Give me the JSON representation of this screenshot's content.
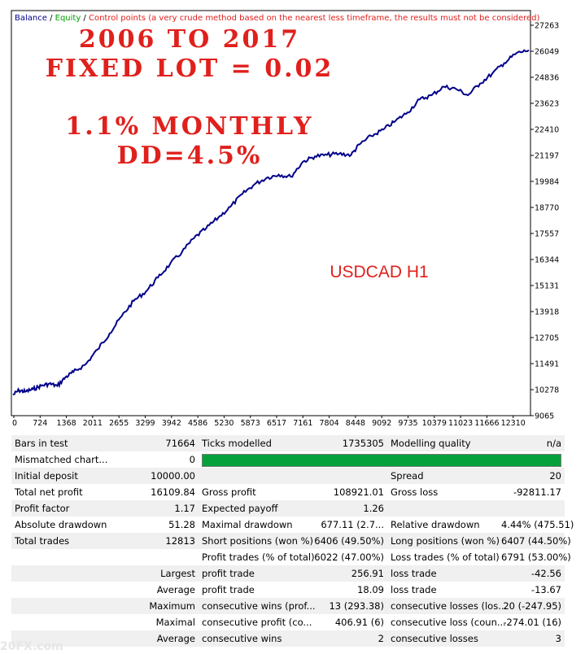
{
  "chart_data": {
    "type": "line",
    "legend": {
      "balance": "Balance",
      "sep1": " / ",
      "equity": "Equity",
      "sep2": " / ",
      "note": "Control points (a very crude method based on the nearest less timeframe, the results must not be considered)"
    },
    "x_ticks": [
      "0",
      "724",
      "1368",
      "2011",
      "2655",
      "3299",
      "3942",
      "4586",
      "5230",
      "5873",
      "6517",
      "7161",
      "7804",
      "8448",
      "9092",
      "9735",
      "10379",
      "11023",
      "11666",
      "12310"
    ],
    "y_ticks": [
      "27263",
      "26049",
      "24836",
      "23623",
      "22410",
      "21197",
      "19984",
      "18770",
      "17557",
      "16344",
      "15131",
      "13918",
      "12705",
      "11491",
      "10278",
      "9065"
    ],
    "ylim": [
      9065,
      27263
    ],
    "xlim": [
      0,
      12813
    ],
    "series": [
      {
        "color": "#00008b",
        "x": [
          0,
          150,
          300,
          500,
          700,
          900,
          1100,
          1300,
          1500,
          1800,
          2100,
          2400,
          2700,
          3000,
          3300,
          3600,
          3900,
          4200,
          4500,
          4800,
          5100,
          5400,
          5700,
          6000,
          6300,
          6600,
          6900,
          7200,
          7500,
          7800,
          8100,
          8400,
          8600,
          8900,
          9200,
          9500,
          9800,
          10100,
          10400,
          10700,
          11000,
          11300,
          11600,
          11900,
          12200,
          12500,
          12813
        ],
        "values": [
          10030,
          10250,
          10180,
          10300,
          10460,
          10550,
          10450,
          10850,
          11100,
          11450,
          12150,
          12900,
          13700,
          14420,
          14850,
          15500,
          16130,
          16700,
          17350,
          17800,
          18300,
          18800,
          19400,
          19850,
          20150,
          20300,
          20200,
          20900,
          21150,
          21220,
          21270,
          21220,
          21700,
          22100,
          22400,
          22800,
          23200,
          23800,
          24000,
          24400,
          24300,
          24000,
          24550,
          25000,
          25500,
          25950,
          26100
        ]
      }
    ],
    "annotations": {
      "line1": "2006 TO 2017",
      "line2": "FIXED LOT = 0.02",
      "line3": "1.1% MONTHLY",
      "line4": "DD=4.5%",
      "label": "USDCAD H1"
    },
    "colors": {
      "balance": "#00008b",
      "equity": "#00a000",
      "annotation": "#e0201c"
    }
  },
  "report": {
    "rows": [
      [
        "Bars in test",
        "71664",
        "Ticks modelled",
        "1735305",
        "Modelling quality",
        "n/a"
      ],
      [
        "Mismatched chart...",
        "0",
        "",
        "",
        "",
        ""
      ],
      [
        "Initial deposit",
        "10000.00",
        "",
        "",
        "Spread",
        "20"
      ],
      [
        "Total net profit",
        "16109.84",
        "Gross profit",
        "108921.01",
        "Gross loss",
        "-92811.17"
      ],
      [
        "Profit factor",
        "1.17",
        "Expected payoff",
        "1.26",
        "",
        ""
      ],
      [
        "Absolute drawdown",
        "51.28",
        "Maximal drawdown",
        "677.11 (2.7...",
        "Relative drawdown",
        "4.44% (475.51)"
      ],
      [
        "Total trades",
        "12813",
        "Short positions (won %)",
        "6406 (49.50%)",
        "Long positions (won %)",
        "6407 (44.50%)"
      ],
      [
        "",
        "",
        "Profit trades (% of total)",
        "6022 (47.00%)",
        "Loss trades (% of total)",
        "6791 (53.00%)"
      ],
      [
        "",
        "Largest",
        "profit trade",
        "256.91",
        "loss trade",
        "-42.56"
      ],
      [
        "",
        "Average",
        "profit trade",
        "18.09",
        "loss trade",
        "-13.67"
      ],
      [
        "",
        "Maximum",
        "consecutive wins (prof...",
        "13 (293.38)",
        "consecutive losses (los...",
        "20 (-247.95)"
      ],
      [
        "",
        "Maximal",
        "consecutive profit (co...",
        "406.91 (6)",
        "consecutive loss (coun...",
        "-274.01 (16)"
      ],
      [
        "",
        "Average",
        "consecutive wins",
        "2",
        "consecutive losses",
        "3"
      ]
    ],
    "modelling_bar_fill": 1.0,
    "watermark": "20FX.com"
  }
}
